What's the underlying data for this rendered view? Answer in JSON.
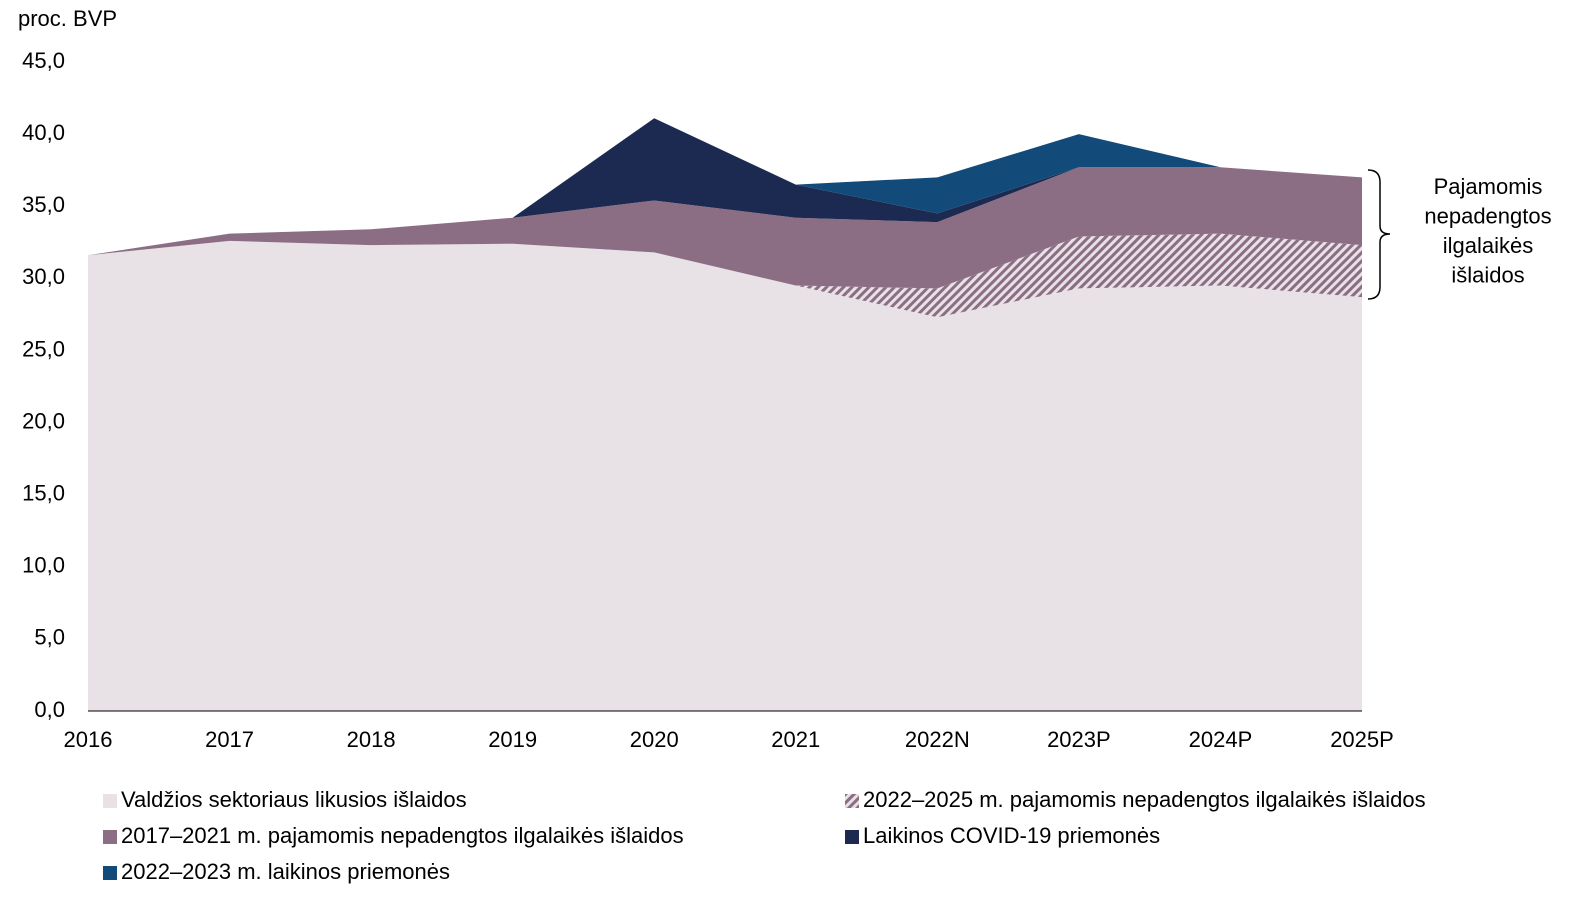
{
  "chart_data": {
    "type": "stacked_area",
    "y_axis_label": "proc. BVP",
    "categories": [
      "2016",
      "2017",
      "2018",
      "2019",
      "2020",
      "2021",
      "2022N",
      "2023P",
      "2024P",
      "2025P"
    ],
    "series": [
      {
        "name": "Valdžios sektoriaus likusios išlaidos",
        "color": "#e8e1e6",
        "values": [
          31.6,
          32.6,
          32.3,
          32.4,
          31.8,
          29.5,
          27.3,
          29.3,
          29.5,
          28.7
        ]
      },
      {
        "name": "2022–2025 m. pajamomis nepadengtos ilgalaikės išlaidos",
        "color": "#8c6e84",
        "pattern": "hatch",
        "values": [
          0,
          0,
          0,
          0,
          0,
          0,
          2.0,
          3.6,
          3.6,
          3.6
        ]
      },
      {
        "name": "2017–2021 m. pajamomis nepadengtos ilgalaikės išlaidos",
        "color": "#8c6e84",
        "values": [
          0,
          0.5,
          1.1,
          1.8,
          3.6,
          4.7,
          4.6,
          4.8,
          4.6,
          4.7
        ]
      },
      {
        "name": "Laikinos COVID-19 priemonės",
        "color": "#1c2a52",
        "values": [
          0,
          0,
          0,
          0,
          5.7,
          2.3,
          0.6,
          0,
          0,
          0
        ]
      },
      {
        "name": "2022–2023 m. laikinos priemonės",
        "color": "#124a7a",
        "values": [
          0,
          0,
          0,
          0,
          0,
          0,
          2.5,
          2.3,
          0,
          0
        ]
      }
    ],
    "ylim": [
      0,
      45
    ],
    "yticks": [
      {
        "value": 0,
        "label": "0,0"
      },
      {
        "value": 5,
        "label": "5,0"
      },
      {
        "value": 10,
        "label": "10,0"
      },
      {
        "value": 15,
        "label": "15,0"
      },
      {
        "value": 20,
        "label": "20,0"
      },
      {
        "value": 25,
        "label": "25,0"
      },
      {
        "value": 30,
        "label": "30,0"
      },
      {
        "value": 35,
        "label": "35,0"
      },
      {
        "value": 40,
        "label": "40,0"
      },
      {
        "value": 45,
        "label": "45,0"
      }
    ],
    "grid": false,
    "legend": "bottom",
    "annotation": [
      "Pajamomis",
      "nepadengtos",
      "ilgalaikės",
      "išlaidos"
    ]
  }
}
